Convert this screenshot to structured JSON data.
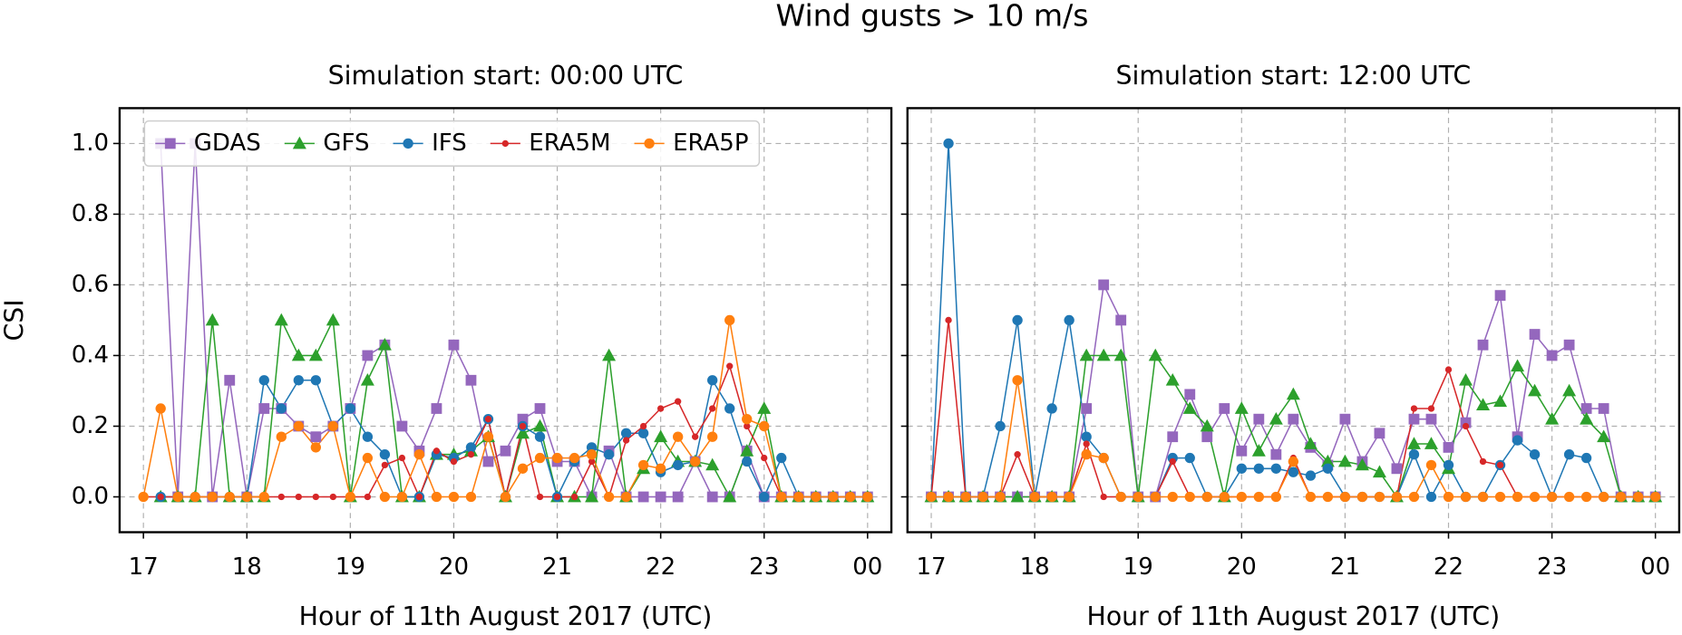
{
  "suptitle": "Wind gusts > 10 m/s",
  "chart_data": [
    {
      "type": "line",
      "title": "Simulation start: 00:00 UTC",
      "xlabel": "Hour of 11th August 2017 (UTC)",
      "ylabel": "CSI",
      "x": [
        17,
        17.1667,
        17.3333,
        17.5,
        17.6667,
        17.8333,
        18,
        18.1667,
        18.3333,
        18.5,
        18.6667,
        18.8333,
        19,
        19.1667,
        19.3333,
        19.5,
        19.6667,
        19.8333,
        20,
        20.1667,
        20.3333,
        20.5,
        20.6667,
        20.8333,
        21,
        21.1667,
        21.3333,
        21.5,
        21.6667,
        21.8333,
        22,
        22.1667,
        22.3333,
        22.5,
        22.6667,
        22.8333,
        23,
        23.1667,
        23.3333,
        23.5,
        23.6667,
        23.8333,
        24
      ],
      "xlim": [
        16.77,
        24.23
      ],
      "xticks": [
        17,
        18,
        19,
        20,
        21,
        22,
        23,
        {
          "value": 24,
          "label": "00"
        }
      ],
      "ylim": [
        -0.1,
        1.1
      ],
      "yticks": [
        {
          "value": 0,
          "label": "0.0"
        },
        0.2,
        0.4,
        0.6,
        0.8,
        {
          "value": 1,
          "label": "1.0"
        }
      ],
      "grid": true,
      "legend": "upper center",
      "series": [
        {
          "name": "GDAS",
          "color": "#9467bd",
          "marker": "square",
          "values": [
            null,
            1.0,
            0,
            1.0,
            0,
            0.33,
            0,
            0.25,
            0.25,
            0.2,
            0.17,
            0.2,
            0.25,
            0.4,
            0.43,
            0.2,
            0.13,
            0.25,
            0.43,
            0.33,
            0.1,
            0.13,
            0.22,
            0.25,
            0.1,
            0.1,
            0,
            0.13,
            0,
            0,
            0,
            0,
            0.1,
            0,
            0,
            0.13,
            0,
            0,
            0,
            0,
            0,
            0,
            0
          ]
        },
        {
          "name": "GFS",
          "color": "#2ca02c",
          "marker": "triangle",
          "values": [
            null,
            0,
            0,
            0,
            0.5,
            0,
            0,
            0,
            0.5,
            0.4,
            0.4,
            0.5,
            0,
            0.33,
            0.43,
            0,
            0,
            0.12,
            0.12,
            0.13,
            0.17,
            0,
            0.18,
            0.2,
            0,
            0,
            0,
            0.4,
            0,
            0.08,
            0.17,
            0.1,
            0.1,
            0.09,
            0,
            0.13,
            0.25,
            0,
            0,
            0,
            0,
            0,
            0
          ]
        },
        {
          "name": "IFS",
          "color": "#1f77b4",
          "marker": "circle",
          "values": [
            null,
            0,
            0,
            0,
            0,
            0,
            0,
            0.33,
            0.25,
            0.33,
            0.33,
            0.2,
            0.25,
            0.17,
            0.12,
            0,
            0,
            0.12,
            0.11,
            0.14,
            0.22,
            0,
            0.2,
            0.17,
            0,
            0.1,
            0.14,
            0.12,
            0.18,
            0.18,
            0.07,
            0.09,
            0.1,
            0.33,
            0.25,
            0.1,
            0,
            0.11,
            0,
            0,
            0,
            0,
            0
          ]
        },
        {
          "name": "ERA5M",
          "color": "#d62728",
          "marker": "dot",
          "values": [
            0,
            0,
            0,
            0,
            0,
            0,
            0,
            0,
            0,
            0,
            0,
            0,
            0,
            0,
            0.09,
            0.11,
            0,
            0.13,
            0.1,
            0.12,
            0.22,
            0,
            0.2,
            0,
            0,
            0,
            0.1,
            0,
            0.16,
            0.2,
            0.25,
            0.27,
            0.17,
            0.25,
            0.37,
            0.2,
            0.11,
            0,
            0,
            0,
            0,
            0,
            0
          ]
        },
        {
          "name": "ERA5P",
          "color": "#ff7f0e",
          "marker": "circle",
          "values": [
            0,
            0.25,
            0,
            0,
            0,
            0,
            0,
            0,
            0.17,
            0.2,
            0.14,
            0.2,
            0,
            0.11,
            0,
            0,
            0.12,
            0,
            0,
            0,
            0.17,
            0,
            0.08,
            0.11,
            0.11,
            0.11,
            0.12,
            0,
            0,
            0.09,
            0.08,
            0.17,
            0.1,
            0.17,
            0.5,
            0.22,
            0.2,
            0,
            0,
            0,
            0,
            0,
            0
          ]
        }
      ]
    },
    {
      "type": "line",
      "title": "Simulation start: 12:00 UTC",
      "xlabel": "Hour of 11th August 2017 (UTC)",
      "x": [
        17,
        17.1667,
        17.3333,
        17.5,
        17.6667,
        17.8333,
        18,
        18.1667,
        18.3333,
        18.5,
        18.6667,
        18.8333,
        19,
        19.1667,
        19.3333,
        19.5,
        19.6667,
        19.8333,
        20,
        20.1667,
        20.3333,
        20.5,
        20.6667,
        20.8333,
        21,
        21.1667,
        21.3333,
        21.5,
        21.6667,
        21.8333,
        22,
        22.1667,
        22.3333,
        22.5,
        22.6667,
        22.8333,
        23,
        23.1667,
        23.3333,
        23.5,
        23.6667,
        23.8333,
        24
      ],
      "xlim": [
        16.77,
        24.23
      ],
      "xticks": [
        17,
        18,
        19,
        20,
        21,
        22,
        23,
        {
          "value": 24,
          "label": "00"
        }
      ],
      "ylim": [
        -0.1,
        1.1
      ],
      "yticks": [
        0,
        0.2,
        0.4,
        0.6,
        0.8,
        1
      ],
      "ytick_labels": false,
      "grid": true,
      "series": [
        {
          "name": "GDAS",
          "color": "#9467bd",
          "marker": "square",
          "values": [
            0,
            0,
            0,
            0,
            0,
            0,
            0,
            0,
            0,
            0.25,
            0.6,
            0.5,
            0,
            0,
            0.17,
            0.29,
            0.17,
            0.25,
            0.13,
            0.22,
            0.12,
            0.22,
            0.14,
            0.09,
            0.22,
            0.1,
            0.18,
            0.08,
            0.22,
            0.22,
            0.14,
            0.21,
            0.43,
            0.57,
            0.17,
            0.46,
            0.4,
            0.43,
            0.25,
            0.25,
            0,
            0,
            0
          ]
        },
        {
          "name": "GFS",
          "color": "#2ca02c",
          "marker": "triangle",
          "values": [
            0,
            0,
            0,
            0,
            0,
            0,
            0,
            0,
            0,
            0.4,
            0.4,
            0.4,
            0,
            0.4,
            0.33,
            0.25,
            0.2,
            0,
            0.25,
            0.13,
            0.22,
            0.29,
            0.15,
            0.1,
            0.1,
            0.09,
            0.07,
            0,
            0.15,
            0.15,
            0.08,
            0.33,
            0.26,
            0.27,
            0.37,
            0.3,
            0.22,
            0.3,
            0.22,
            0.17,
            0,
            0,
            0
          ]
        },
        {
          "name": "IFS",
          "color": "#1f77b4",
          "marker": "circle",
          "values": [
            0,
            1.0,
            0,
            0,
            0.2,
            0.5,
            0,
            0.25,
            0.5,
            0.17,
            0.11,
            0,
            0,
            0,
            0.11,
            0.11,
            0,
            0,
            0.08,
            0.08,
            0.08,
            0.07,
            0.06,
            0.08,
            0,
            0,
            0,
            0,
            0.12,
            0,
            0.09,
            0,
            0,
            0.09,
            0.16,
            0.12,
            0,
            0.12,
            0.11,
            0,
            0,
            0,
            0
          ]
        },
        {
          "name": "ERA5M",
          "color": "#d62728",
          "marker": "dot",
          "values": [
            0,
            0.5,
            0,
            0,
            0,
            0.12,
            0,
            0,
            0,
            0.15,
            0,
            0,
            0,
            0,
            0.1,
            0,
            0,
            0,
            0,
            0,
            0,
            0.11,
            0,
            0,
            0,
            0,
            0,
            0,
            0.25,
            0.25,
            0.36,
            0.2,
            0.1,
            0.09,
            0,
            0,
            0,
            0,
            0,
            0,
            0,
            0,
            0
          ]
        },
        {
          "name": "ERA5P",
          "color": "#ff7f0e",
          "marker": "circle",
          "values": [
            0,
            0,
            0,
            0,
            0,
            0.33,
            0,
            0,
            0,
            0.12,
            0.11,
            0,
            0,
            0,
            0,
            0,
            0,
            0,
            0,
            0,
            0,
            0.1,
            0,
            0,
            0,
            0,
            0,
            0,
            0,
            0.09,
            0,
            0,
            0,
            0,
            0,
            0,
            0,
            0,
            0,
            0,
            0,
            0,
            0
          ]
        }
      ]
    }
  ]
}
